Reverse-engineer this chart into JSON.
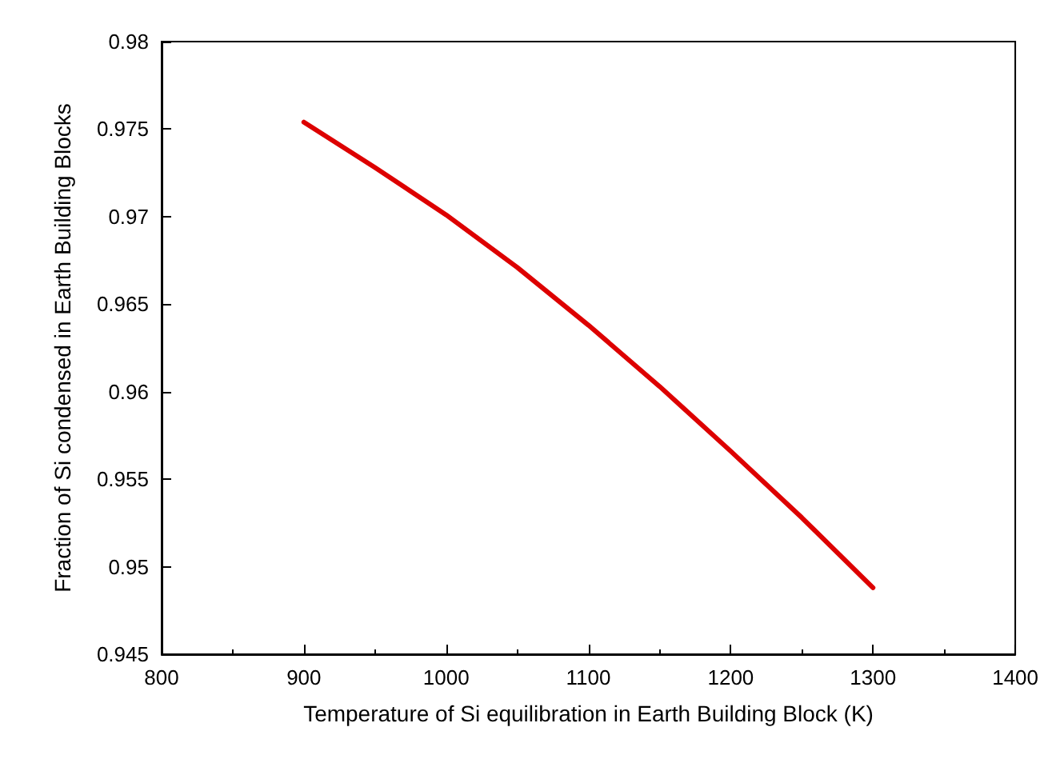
{
  "chart_data": {
    "type": "line",
    "xlabel": "Temperature of Si equilibration in Earth Building Block (K)",
    "ylabel": "Fraction of Si condensed in Earth Building Blocks",
    "x": [
      900,
      950,
      1000,
      1050,
      1100,
      1150,
      1200,
      1250,
      1300
    ],
    "series": [
      {
        "color": "#dd0000",
        "values": [
          0.9754,
          0.9728,
          0.9701,
          0.9671,
          0.9638,
          0.9603,
          0.9566,
          0.9528,
          0.9488
        ]
      }
    ],
    "xlim": [
      800,
      1400
    ],
    "xticks": [
      800,
      900,
      1000,
      1100,
      1200,
      1300,
      1400
    ],
    "ylim": [
      0.945,
      0.98
    ],
    "yticks": [
      0.945,
      0.95,
      0.955,
      0.96,
      0.965,
      0.97,
      0.975,
      0.98
    ],
    "grid": false,
    "marker": "none",
    "line_style": "solid"
  }
}
